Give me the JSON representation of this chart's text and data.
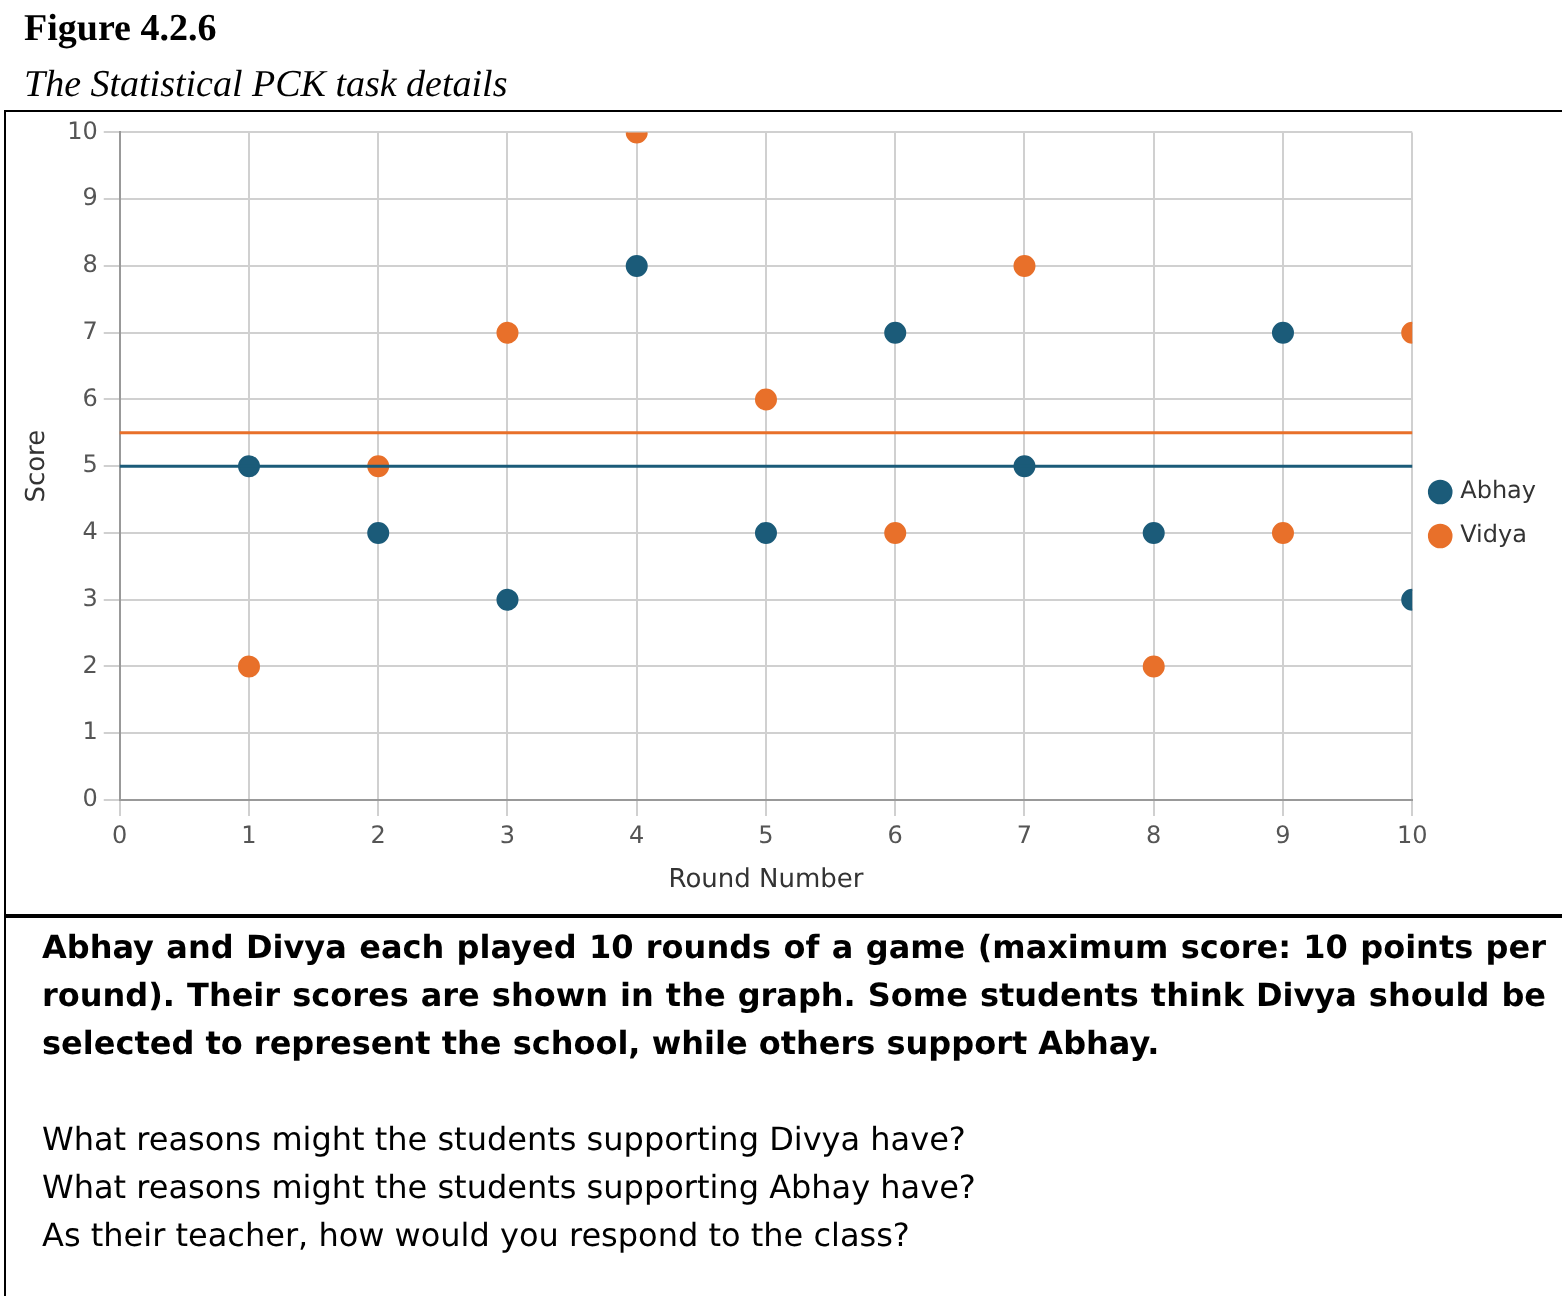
{
  "chart_data": {
    "type": "scatter",
    "title": "Figure 4.2.6",
    "subtitle": "The Statistical PCK task details",
    "xlabel": "Round Number",
    "ylabel": "Score",
    "x": [
      1,
      2,
      3,
      4,
      5,
      6,
      7,
      8,
      9,
      10
    ],
    "series": [
      {
        "name": "Abhay",
        "color": "#1b5b79",
        "values": [
          5,
          4,
          3,
          8,
          4,
          7,
          5,
          4,
          7,
          3
        ]
      },
      {
        "name": "Vidya",
        "color": "#e8702a",
        "values": [
          2,
          5,
          7,
          10,
          6,
          4,
          8,
          2,
          4,
          7
        ]
      }
    ],
    "xlim": [
      0,
      10
    ],
    "xticks": [
      0,
      1,
      2,
      3,
      4,
      5,
      6,
      7,
      8,
      9,
      10
    ],
    "ylim": [
      0,
      10
    ],
    "yticks": [
      0,
      1,
      2,
      3,
      4,
      5,
      6,
      7,
      8,
      9,
      10
    ],
    "ref_lines": [
      {
        "axis": "y",
        "value": 5,
        "color": "#1b5b79"
      },
      {
        "axis": "y",
        "value": 5.5,
        "color": "#e8702a"
      }
    ],
    "grid": true,
    "legend": "right",
    "marker": "circle",
    "annotations": [
      "Abhay and Divya each played 10 rounds of a game (maximum score: 10 points per round). Their scores are shown in the graph. Some students think Divya should be selected to represent the school, while others support Abhay.",
      "What reasons might the students supporting Divya have?",
      "What reasons might the students supporting Abhay have?",
      "As their teacher, how would you respond to the class?"
    ]
  }
}
